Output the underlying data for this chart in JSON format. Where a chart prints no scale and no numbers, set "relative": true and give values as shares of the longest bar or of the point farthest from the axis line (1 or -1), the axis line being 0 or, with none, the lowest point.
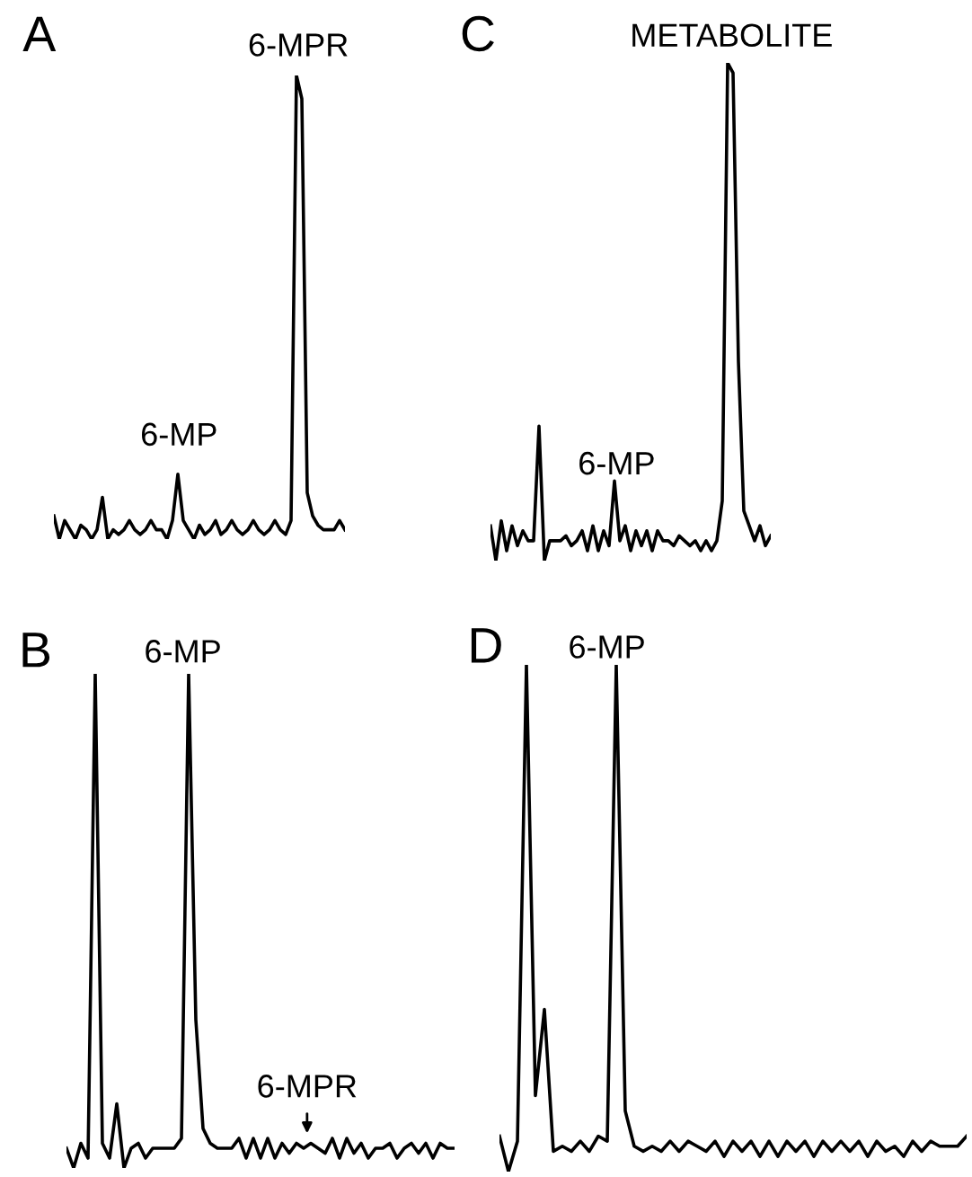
{
  "chart_data": [
    {
      "type": "line",
      "title": "A",
      "relative": true,
      "annotations": [
        "6-MPR",
        "6-MP"
      ],
      "categories": [
        null,
        null,
        null,
        null,
        null,
        null,
        null,
        null,
        null,
        null,
        null,
        null,
        null,
        null,
        null,
        null,
        null,
        null,
        null,
        null,
        null,
        null,
        null,
        null,
        null,
        null,
        null,
        null,
        null,
        null,
        null,
        null,
        null,
        null,
        null,
        null,
        null,
        null,
        null,
        null,
        null,
        null,
        null,
        null,
        null,
        null,
        null,
        null,
        null,
        null,
        null,
        null,
        null,
        null,
        null
      ],
      "series": [
        {
          "color": "#000000",
          "values": [
            0.05,
            0.0,
            0.04,
            0.02,
            0.0,
            0.03,
            0.02,
            0.0,
            0.02,
            0.09,
            0.0,
            0.02,
            0.01,
            0.02,
            0.04,
            0.02,
            0.01,
            0.02,
            0.04,
            0.02,
            0.02,
            0.0,
            0.04,
            0.14,
            0.04,
            0.02,
            0.0,
            0.03,
            0.01,
            0.02,
            0.04,
            0.01,
            0.02,
            0.04,
            0.02,
            0.01,
            0.02,
            0.04,
            0.02,
            0.01,
            0.02,
            0.04,
            0.02,
            0.01,
            0.04,
            1.0,
            0.95,
            0.1,
            0.05,
            0.03,
            0.02,
            0.02,
            0.02,
            0.04,
            0.02
          ]
        }
      ]
    },
    {
      "type": "line",
      "title": "C",
      "relative": true,
      "annotations": [
        "METABOLITE",
        "6-MP"
      ],
      "categories": [
        null,
        null,
        null,
        null,
        null,
        null,
        null,
        null,
        null,
        null,
        null,
        null,
        null,
        null,
        null,
        null,
        null,
        null,
        null,
        null,
        null,
        null,
        null,
        null,
        null,
        null,
        null,
        null,
        null,
        null,
        null,
        null,
        null,
        null,
        null,
        null,
        null,
        null,
        null,
        null,
        null,
        null,
        null,
        null,
        null,
        null,
        null,
        null,
        null,
        null,
        null,
        null,
        null
      ],
      "series": [
        {
          "color": "#000000",
          "values": [
            0.07,
            0.0,
            0.08,
            0.02,
            0.07,
            0.03,
            0.06,
            0.04,
            0.04,
            0.27,
            0.0,
            0.04,
            0.04,
            0.04,
            0.05,
            0.03,
            0.04,
            0.06,
            0.02,
            0.07,
            0.02,
            0.06,
            0.03,
            0.16,
            0.04,
            0.07,
            0.02,
            0.06,
            0.03,
            0.06,
            0.02,
            0.06,
            0.04,
            0.04,
            0.03,
            0.05,
            0.04,
            0.03,
            0.04,
            0.02,
            0.04,
            0.02,
            0.04,
            0.12,
            1.0,
            0.98,
            0.4,
            0.1,
            0.07,
            0.04,
            0.07,
            0.03,
            0.05
          ]
        }
      ]
    },
    {
      "type": "line",
      "title": "B",
      "relative": true,
      "annotations": [
        "6-MP",
        "6-MPR"
      ],
      "categories": [
        null,
        null,
        null,
        null,
        null,
        null,
        null,
        null,
        null,
        null,
        null,
        null,
        null,
        null,
        null,
        null,
        null,
        null,
        null,
        null,
        null,
        null,
        null,
        null,
        null,
        null,
        null,
        null,
        null,
        null,
        null,
        null,
        null,
        null,
        null,
        null,
        null,
        null,
        null,
        null,
        null,
        null,
        null,
        null,
        null,
        null,
        null,
        null,
        null,
        null,
        null,
        null,
        null,
        null,
        null
      ],
      "series": [
        {
          "color": "#000000",
          "values": [
            0.04,
            0.0,
            0.05,
            0.02,
            1.0,
            0.05,
            0.02,
            0.13,
            0.0,
            0.04,
            0.05,
            0.02,
            0.04,
            0.04,
            0.04,
            0.04,
            0.06,
            1.0,
            0.3,
            0.08,
            0.05,
            0.04,
            0.04,
            0.04,
            0.06,
            0.02,
            0.06,
            0.02,
            0.06,
            0.02,
            0.05,
            0.03,
            0.05,
            0.04,
            0.05,
            0.04,
            0.03,
            0.06,
            0.02,
            0.06,
            0.03,
            0.05,
            0.02,
            0.04,
            0.04,
            0.05,
            0.02,
            0.04,
            0.05,
            0.03,
            0.05,
            0.02,
            0.05,
            0.04,
            0.04
          ]
        }
      ]
    },
    {
      "type": "line",
      "title": "D",
      "relative": true,
      "annotations": [
        "6-MP"
      ],
      "categories": [
        null,
        null,
        null,
        null,
        null,
        null,
        null,
        null,
        null,
        null,
        null,
        null,
        null,
        null,
        null,
        null,
        null,
        null,
        null,
        null,
        null,
        null,
        null,
        null,
        null,
        null,
        null,
        null,
        null,
        null,
        null,
        null,
        null,
        null,
        null,
        null,
        null,
        null,
        null,
        null,
        null,
        null,
        null,
        null,
        null,
        null,
        null,
        null,
        null,
        null,
        null,
        null,
        null
      ],
      "series": [
        {
          "color": "#000000",
          "values": [
            0.07,
            0.0,
            0.06,
            1.0,
            0.15,
            0.32,
            0.04,
            0.05,
            0.04,
            0.06,
            0.04,
            0.07,
            0.06,
            1.0,
            0.12,
            0.05,
            0.04,
            0.05,
            0.04,
            0.06,
            0.04,
            0.06,
            0.05,
            0.04,
            0.06,
            0.03,
            0.06,
            0.04,
            0.06,
            0.03,
            0.06,
            0.03,
            0.06,
            0.04,
            0.06,
            0.03,
            0.06,
            0.04,
            0.06,
            0.04,
            0.06,
            0.03,
            0.06,
            0.04,
            0.05,
            0.03,
            0.06,
            0.04,
            0.06,
            0.05,
            0.05,
            0.05,
            0.07
          ]
        }
      ]
    }
  ]
}
